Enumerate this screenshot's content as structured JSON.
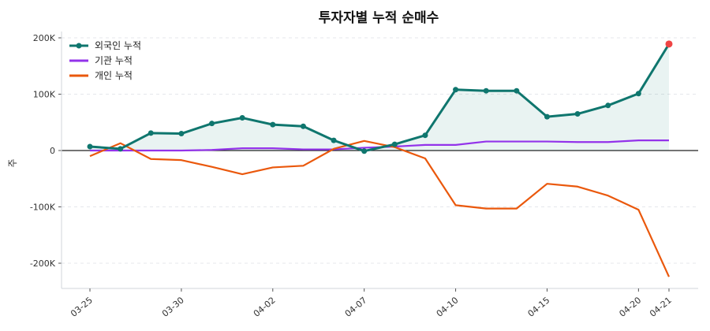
{
  "chart_data": {
    "type": "line",
    "title": "투자자별 누적 순매수",
    "xlabel": "",
    "ylabel": "주",
    "ylim": [
      -245000,
      205000
    ],
    "yticks": [
      200000,
      100000,
      0,
      -100000,
      -200000
    ],
    "ytick_labels": [
      "200K",
      "100K",
      "0",
      "-100K",
      "-200K"
    ],
    "x_tick_labels": [
      {
        "index": 0,
        "label": "03-25"
      },
      {
        "index": 3,
        "label": "03-30"
      },
      {
        "index": 6,
        "label": "04-02"
      },
      {
        "index": 9,
        "label": "04-07"
      },
      {
        "index": 12,
        "label": "04-10"
      },
      {
        "index": 15,
        "label": "04-15"
      },
      {
        "index": 18,
        "label": "04-20"
      },
      {
        "index": 19,
        "label": "04-21"
      }
    ],
    "grid": true,
    "legend_position": "top-left",
    "series": [
      {
        "name": "외국인 누적",
        "color": "#0f766e",
        "markers": true,
        "fill": true,
        "values": [
          7000,
          3000,
          31000,
          30000,
          48000,
          58000,
          46000,
          43000,
          18000,
          -1000,
          11000,
          27000,
          108000,
          106000,
          106000,
          60000,
          65000,
          80000,
          101000,
          189000
        ]
      },
      {
        "name": "기관 누적",
        "color": "#9333ea",
        "values": [
          0,
          0,
          0,
          0,
          1000,
          4000,
          4000,
          2000,
          2000,
          5000,
          7000,
          10000,
          10000,
          16000,
          16000,
          16000,
          15000,
          15000,
          18000,
          18000
        ]
      },
      {
        "name": "개인 누적",
        "color": "#ea580c",
        "values": [
          -10000,
          13000,
          -15000,
          -17000,
          -29000,
          -42000,
          -30000,
          -27000,
          3000,
          17000,
          6000,
          -14000,
          -97000,
          -103000,
          -103000,
          -59000,
          -64000,
          -80000,
          -105000,
          -224000
        ]
      }
    ],
    "highlight_last_point_color": "#ef4444"
  }
}
